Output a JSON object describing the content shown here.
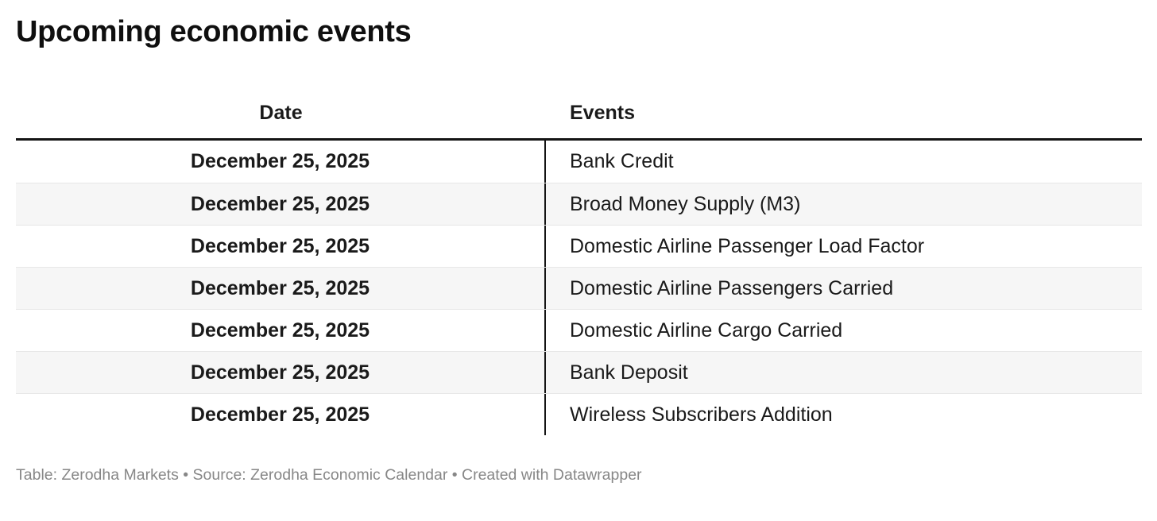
{
  "chart_data": {
    "type": "table",
    "title": "Upcoming economic events",
    "columns": [
      "Date",
      "Events"
    ],
    "rows": [
      [
        "December 25, 2025",
        "Bank Credit"
      ],
      [
        "December 25, 2025",
        "Broad Money Supply (M3)"
      ],
      [
        "December 25, 2025",
        "Domestic Airline Passenger Load Factor"
      ],
      [
        "December 25, 2025",
        "Domestic Airline Passengers Carried"
      ],
      [
        "December 25, 2025",
        "Domestic Airline Cargo Carried"
      ],
      [
        "December 25, 2025",
        "Bank Deposit"
      ],
      [
        "December 25, 2025",
        "Wireless Subscribers Addition"
      ]
    ],
    "layout": {
      "date_column_alignment": "center",
      "events_column_alignment": "left",
      "striped_rows": true
    }
  },
  "footer": {
    "text": "Table: Zerodha Markets • Source: Zerodha Economic Calendar • Created with Datawrapper"
  },
  "colors": {
    "text": "#1a1a1a",
    "title_text": "#0f0f0f",
    "header_rule": "#141414",
    "column_divider": "#141414",
    "row_alt_background": "#f6f6f6",
    "row_separator": "#e7e7e7",
    "footer_text": "#878787",
    "background": "#ffffff"
  }
}
